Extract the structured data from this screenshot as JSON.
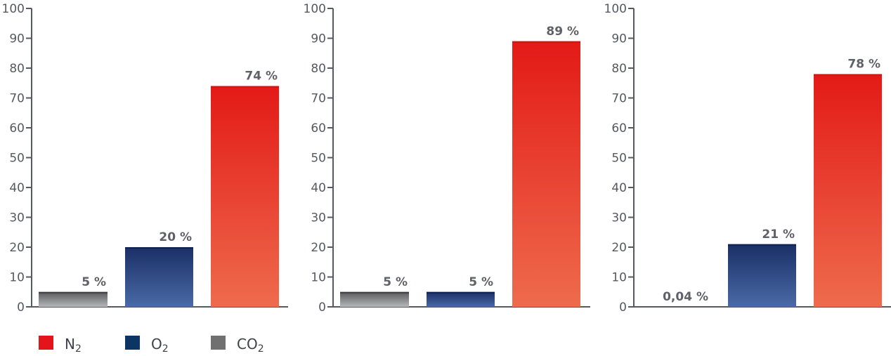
{
  "chart_data": [
    {
      "type": "bar",
      "categories": [
        "CO₂",
        "O₂",
        "N₂"
      ],
      "values": [
        5,
        20,
        74
      ],
      "value_labels": [
        "5 %",
        "20 %",
        "74 %"
      ],
      "y_ticks": [
        "0",
        "10",
        "20",
        "30",
        "40",
        "50",
        "60",
        "70",
        "80",
        "90",
        "100"
      ],
      "ylim": [
        0,
        100
      ],
      "grid": false
    },
    {
      "type": "bar",
      "categories": [
        "CO₂",
        "O₂",
        "N₂"
      ],
      "values": [
        5,
        5,
        89
      ],
      "value_labels": [
        "5 %",
        "5 %",
        "89 %"
      ],
      "y_ticks": [
        "0",
        "10",
        "20",
        "30",
        "40",
        "50",
        "60",
        "70",
        "80",
        "90",
        "100"
      ],
      "ylim": [
        0,
        100
      ],
      "grid": false
    },
    {
      "type": "bar",
      "categories": [
        "CO₂",
        "O₂",
        "N₂"
      ],
      "values": [
        0.04,
        21,
        78
      ],
      "value_labels": [
        "0,04 %",
        "21 %",
        "78 %"
      ],
      "y_ticks": [
        "0",
        "10",
        "20",
        "30",
        "40",
        "50",
        "60",
        "70",
        "80",
        "90",
        "100"
      ],
      "ylim": [
        0,
        100
      ],
      "grid": false
    }
  ],
  "legend": {
    "placement": "bottom-left",
    "items": [
      {
        "base": "N",
        "sub": "2",
        "color": "#e3151b"
      },
      {
        "base": "O",
        "sub": "2",
        "color": "#0d3563"
      },
      {
        "base": "CO",
        "sub": "2",
        "color": "#707070"
      }
    ]
  },
  "colors": {
    "co2": {
      "top": "#5a5a5c",
      "bottom": "#b6b7b9"
    },
    "o2": {
      "top": "#1a2f66",
      "bottom": "#4a6aa6"
    },
    "n2": {
      "top": "#e31a17",
      "bottom": "#ee6b4d"
    },
    "axis": "#555a60"
  }
}
